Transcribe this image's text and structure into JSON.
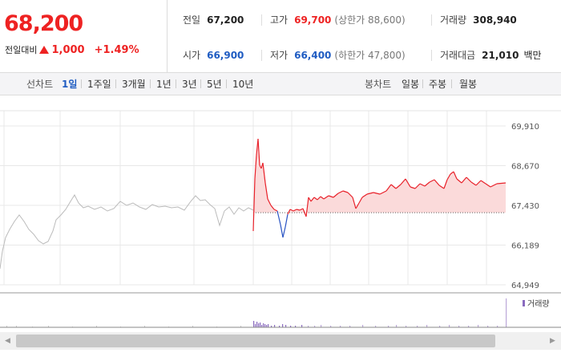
{
  "quote": {
    "current_price": "68,200",
    "change_label": "전일대비",
    "change_amount": "1,000",
    "change_pct": "+1.49%"
  },
  "stats": {
    "prev_close": {
      "label": "전일",
      "value": "67,200"
    },
    "high": {
      "label": "고가",
      "value": "69,700",
      "sub": "(상한가 88,600)"
    },
    "volume": {
      "label": "거래량",
      "value": "308,940"
    },
    "open": {
      "label": "시가",
      "value": "66,900"
    },
    "low": {
      "label": "저가",
      "value": "66,400",
      "sub": "(하한가 47,800)"
    },
    "trade_value": {
      "label": "거래대금",
      "value": "21,010",
      "unit": "백만"
    }
  },
  "toolbar": {
    "line_label": "선차트",
    "line_periods": [
      "1일",
      "1주일",
      "3개월",
      "1년",
      "3년",
      "5년",
      "10년"
    ],
    "candle_label": "봉차트",
    "candle_periods": [
      "일봉",
      "주봉",
      "월봉"
    ]
  },
  "chart_data": {
    "type": "line",
    "y_ticks": [
      "69,910",
      "68,670",
      "67,430",
      "66,189",
      "64,949"
    ],
    "ylim": [
      64949,
      69910
    ],
    "reference_price": 67200,
    "volume_legend": "거래량",
    "colors": {
      "up": "#e8212a",
      "down": "#2b55c4",
      "prev_day": "#bbbbbb",
      "fill": "#fbdada",
      "grid": "#e8e8e8"
    }
  }
}
